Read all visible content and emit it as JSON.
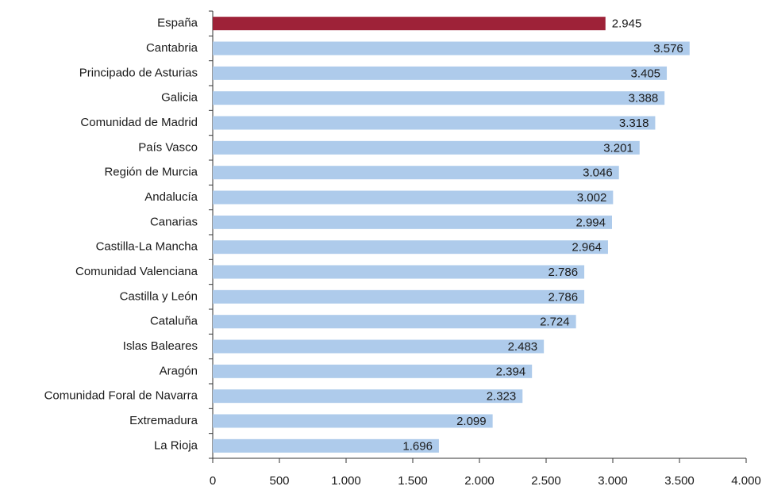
{
  "chart_data": {
    "type": "barh",
    "categories": [
      "España",
      "Cantabria",
      "Principado de Asturias",
      "Galicia",
      "Comunidad de Madrid",
      "País Vasco",
      "Región de Murcia",
      "Andalucía",
      "Canarias",
      "Castilla-La Mancha",
      "Comunidad Valenciana",
      "Castilla y León",
      "Cataluña",
      "Islas Baleares",
      "Aragón",
      "Comunidad Foral de Navarra",
      "Extremadura",
      "La Rioja"
    ],
    "values": [
      2945,
      3576,
      3405,
      3388,
      3318,
      3201,
      3046,
      3002,
      2994,
      2964,
      2786,
      2786,
      2724,
      2483,
      2394,
      2323,
      2099,
      1696
    ],
    "value_labels": [
      "2.945",
      "3.576",
      "3.405",
      "3.388",
      "3.318",
      "3.201",
      "3.046",
      "3.002",
      "2.994",
      "2.964",
      "2.786",
      "2.786",
      "2.724",
      "2.483",
      "2.394",
      "2.323",
      "2.099",
      "1.696"
    ],
    "colors": [
      "#9e2238",
      "#aecbeb",
      "#aecbeb",
      "#aecbeb",
      "#aecbeb",
      "#aecbeb",
      "#aecbeb",
      "#aecbeb",
      "#aecbeb",
      "#aecbeb",
      "#aecbeb",
      "#aecbeb",
      "#aecbeb",
      "#aecbeb",
      "#aecbeb",
      "#aecbeb",
      "#aecbeb",
      "#aecbeb"
    ],
    "xlim": [
      0,
      4000
    ],
    "xticks": [
      0,
      500,
      {
        "value": 1000,
        "label": "1.000"
      },
      {
        "value": 1500,
        "label": "1.500"
      },
      {
        "value": 2000,
        "label": "2.000"
      },
      {
        "value": 2500,
        "label": "2.500"
      },
      {
        "value": 3000,
        "label": "3.000"
      },
      {
        "value": 3500,
        "label": "3.500"
      },
      {
        "value": 4000,
        "label": "4.000"
      }
    ],
    "grid": false
  }
}
